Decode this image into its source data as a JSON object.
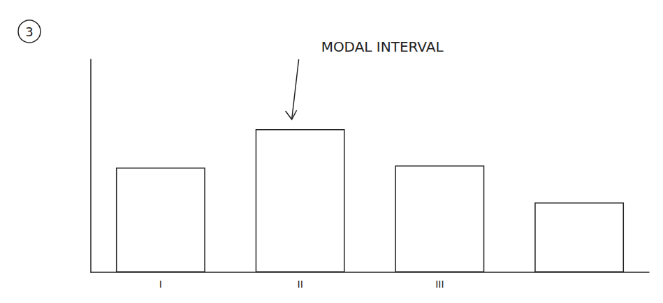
{
  "chart_data": {
    "type": "bar",
    "title": "3",
    "categories": [
      "I",
      "II",
      "III",
      null
    ],
    "values": [
      150,
      205,
      153,
      100
    ],
    "color": "#ffffff",
    "ylim": [
      0,
      305
    ],
    "grid": false,
    "tick_labels": "x",
    "annotations": [
      {
        "text": "MODAL INTERVAL",
        "category": "II"
      }
    ]
  }
}
